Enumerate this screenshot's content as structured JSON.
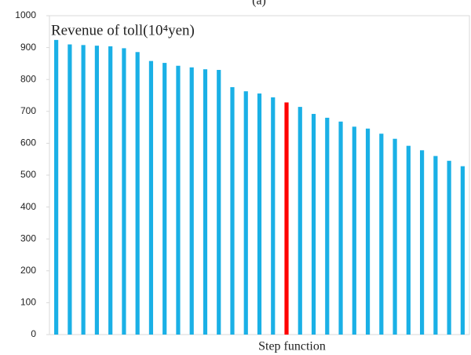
{
  "chart_data": {
    "type": "bar",
    "title": "(a)",
    "y_label": "Revenue of toll(10⁴yen)",
    "x_label": "Step function",
    "categories": [
      null,
      null,
      null,
      null,
      null,
      null,
      null,
      null,
      null,
      null,
      null,
      null,
      null,
      null,
      null,
      null,
      null,
      null,
      null,
      null,
      null,
      null,
      null,
      null,
      null,
      null,
      null,
      null,
      null,
      null,
      null
    ],
    "values": [
      924,
      910,
      908,
      906,
      904,
      898,
      886,
      858,
      852,
      843,
      838,
      832,
      830,
      776,
      763,
      756,
      744,
      728,
      714,
      692,
      680,
      668,
      652,
      646,
      630,
      614,
      592,
      578,
      560,
      545,
      528
    ],
    "colors": [
      "#1ab0e6",
      "#1ab0e6",
      "#1ab0e6",
      "#1ab0e6",
      "#1ab0e6",
      "#1ab0e6",
      "#1ab0e6",
      "#1ab0e6",
      "#1ab0e6",
      "#1ab0e6",
      "#1ab0e6",
      "#1ab0e6",
      "#1ab0e6",
      "#1ab0e6",
      "#1ab0e6",
      "#1ab0e6",
      "#1ab0e6",
      "#ff0000",
      "#1ab0e6",
      "#1ab0e6",
      "#1ab0e6",
      "#1ab0e6",
      "#1ab0e6",
      "#1ab0e6",
      "#1ab0e6",
      "#1ab0e6",
      "#1ab0e6",
      "#1ab0e6",
      "#1ab0e6",
      "#1ab0e6",
      "#1ab0e6"
    ],
    "ylim": [
      0,
      1000
    ],
    "yticks": [
      0,
      100,
      200,
      300,
      400,
      500,
      600,
      700,
      800,
      900,
      1000
    ],
    "grid": false
  }
}
